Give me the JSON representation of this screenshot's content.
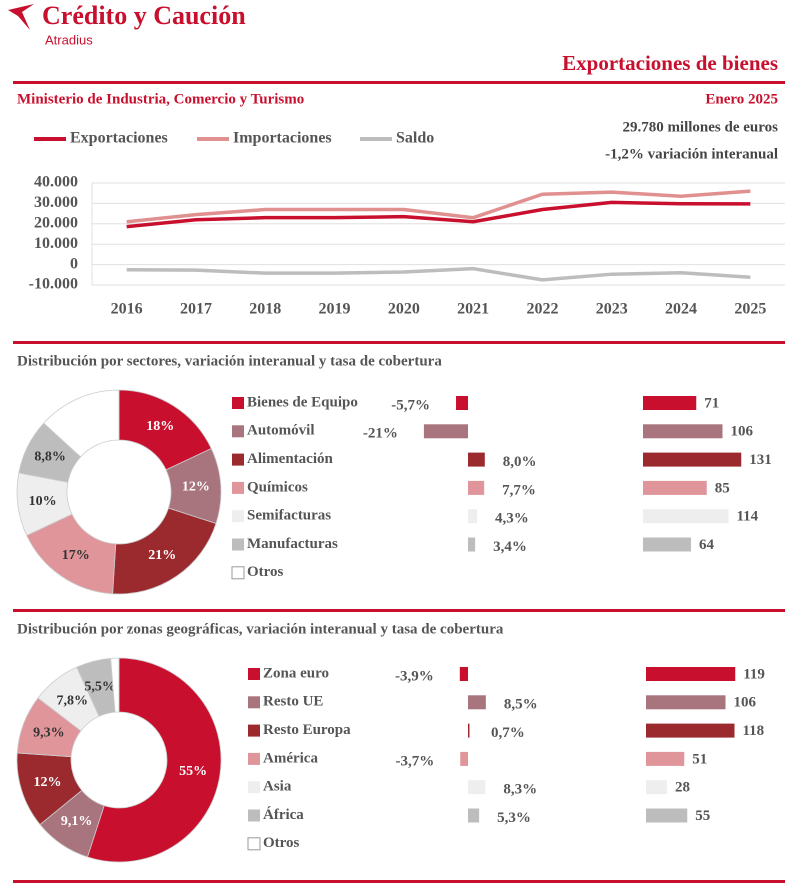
{
  "header": {
    "logo": "Crédito y Caución",
    "brand": "Atradius",
    "title": "Exportaciones de bienes",
    "source": "Ministerio de Industria, Comercio y Turismo",
    "period": "Enero 2025",
    "total": "29.780 millones de euros",
    "change": "-1,2% variación interanual"
  },
  "chart_data": [
    {
      "type": "line",
      "categories": [
        "2016",
        "2017",
        "2018",
        "2019",
        "2020",
        "2021",
        "2022",
        "2023",
        "2024",
        "2025"
      ],
      "series": [
        {
          "name": "Exportaciones",
          "color": "#c8102e",
          "values": [
            18600,
            22000,
            23000,
            23000,
            23500,
            21000,
            27000,
            30500,
            29800,
            29780
          ]
        },
        {
          "name": "Importaciones",
          "color": "#e0908f",
          "values": [
            21000,
            24500,
            27000,
            27000,
            27000,
            23000,
            34500,
            35500,
            33500,
            36000
          ]
        },
        {
          "name": "Saldo",
          "color": "#bdbdbd",
          "values": [
            -2500,
            -2700,
            -4200,
            -4200,
            -3600,
            -2000,
            -7500,
            -4700,
            -4000,
            -6200
          ]
        }
      ],
      "ylim": [
        -10000,
        40000
      ],
      "yticks": [
        {
          "value": 40000,
          "label": "40.000"
        },
        {
          "value": 30000,
          "label": "30.000"
        },
        {
          "value": 20000,
          "label": "20.000"
        },
        {
          "value": 10000,
          "label": "10.000"
        },
        0,
        {
          "value": -10000,
          "label": "-10.000"
        }
      ],
      "grid": true,
      "legend": "top-left"
    },
    {
      "type": "donut",
      "title": "Distribución por sectores, variación interanual y tasa de cobertura",
      "categories": [
        "Bienes de Equipo",
        "Automóvil",
        "Alimentación",
        "Químicos",
        "Semifacturas",
        "Manufacturas",
        "Otros"
      ],
      "colors": [
        "#c8102e",
        "#a8757e",
        "#9b2a2e",
        "#e0959a",
        "#eeeeee",
        "#bdbdbd",
        "#ffffff"
      ],
      "values": [
        18,
        12,
        21,
        17,
        10,
        8.8,
        13.2
      ],
      "value_labels": [
        "18%",
        "12%",
        "21%",
        "17%",
        "10%",
        "8,8%",
        null
      ],
      "variation": [
        -5.7,
        -21,
        8.0,
        7.7,
        4.3,
        3.4,
        null
      ],
      "variation_labels": [
        "-5,7%",
        "-21%",
        "8,0%",
        "7,7%",
        "4,3%",
        "3,4%",
        null
      ],
      "coverage": [
        71,
        106,
        131,
        85,
        114,
        64,
        null
      ]
    },
    {
      "type": "donut",
      "title": "Distribución por zonas geográficas, variación interanual y tasa de cobertura",
      "categories": [
        "Zona euro",
        "Resto UE",
        "Resto Europa",
        "América",
        "Asia",
        "África",
        "Otros"
      ],
      "colors": [
        "#c8102e",
        "#a8757e",
        "#9b2a2e",
        "#e0959a",
        "#eeeeee",
        "#bdbdbd",
        "#ffffff"
      ],
      "values": [
        55,
        9.1,
        12,
        9.3,
        7.8,
        5.5,
        1.3
      ],
      "value_labels": [
        "55%",
        "9,1%",
        "12%",
        "9,3%",
        "7,8%",
        "5,5%",
        null
      ],
      "variation": [
        -3.9,
        8.5,
        0.7,
        -3.7,
        8.3,
        5.3,
        null
      ],
      "variation_labels": [
        "-3,9%",
        "8,5%",
        "0,7%",
        "-3,7%",
        "8,3%",
        "5,3%",
        null
      ],
      "coverage": [
        119,
        106,
        118,
        51,
        28,
        55,
        null
      ]
    }
  ]
}
